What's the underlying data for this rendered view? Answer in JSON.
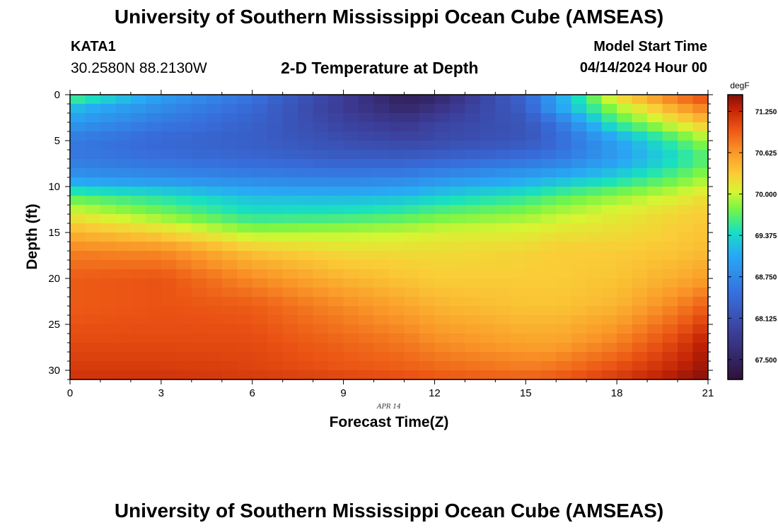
{
  "header": {
    "title": "University of Southern Mississippi Ocean Cube (AMSEAS)",
    "station": "KATA1",
    "coords": "30.2580N  88.2130W",
    "subtitle": "2-D Temperature at Depth",
    "start_label": "Model Start Time",
    "start_value": "04/14/2024 Hour 00"
  },
  "footer": {
    "title": "University of Southern Mississippi Ocean Cube (AMSEAS)"
  },
  "chart_data": {
    "type": "heatmap",
    "title": "2-D Temperature at Depth",
    "xlabel": "Forecast Time(Z)",
    "ylabel": "Depth (ft)",
    "x_date_label": "APR 14",
    "xlim": [
      0,
      21
    ],
    "ylim": [
      0,
      31
    ],
    "x_ticks": [
      0,
      3,
      6,
      9,
      12,
      15,
      18,
      21
    ],
    "y_ticks": [
      0,
      5,
      10,
      15,
      20,
      25,
      30
    ],
    "colorbar": {
      "unit": "degF",
      "range": [
        67.2,
        71.5
      ],
      "ticks": [
        "71.250",
        "70.625",
        "70.000",
        "69.375",
        "68.750",
        "68.125",
        "67.500"
      ]
    },
    "x": [
      0,
      3,
      6,
      9,
      11,
      12,
      15,
      16,
      18,
      20,
      21
    ],
    "depths": [
      0,
      1,
      3,
      5,
      7,
      9,
      11,
      13,
      15,
      17,
      20,
      23,
      27,
      30,
      31
    ],
    "values": [
      [
        69.85,
        69.0,
        68.55,
        67.9,
        67.4,
        67.5,
        68.4,
        68.9,
        70.3,
        70.9,
        71.1
      ],
      [
        69.3,
        68.85,
        68.45,
        67.85,
        67.5,
        67.65,
        68.35,
        69.1,
        70.0,
        70.65,
        70.9
      ],
      [
        68.95,
        68.6,
        68.35,
        67.95,
        67.8,
        67.95,
        68.2,
        68.55,
        69.6,
        70.15,
        70.4
      ],
      [
        68.6,
        68.4,
        68.3,
        68.1,
        68.0,
        68.05,
        68.2,
        68.4,
        69.0,
        69.6,
        69.9
      ],
      [
        68.6,
        68.5,
        68.4,
        68.3,
        68.3,
        68.35,
        68.5,
        68.6,
        68.95,
        69.4,
        69.65
      ],
      [
        68.9,
        68.8,
        68.7,
        68.65,
        68.7,
        68.8,
        69.0,
        69.1,
        69.35,
        69.7,
        69.9
      ],
      [
        69.65,
        69.45,
        69.2,
        69.15,
        69.2,
        69.3,
        69.5,
        69.65,
        69.85,
        70.05,
        70.2
      ],
      [
        70.1,
        69.8,
        69.45,
        69.5,
        69.6,
        69.7,
        69.85,
        69.95,
        70.1,
        70.25,
        70.3
      ],
      [
        70.45,
        70.25,
        69.9,
        69.95,
        70.0,
        70.05,
        70.1,
        70.15,
        70.2,
        70.3,
        70.35
      ],
      [
        70.75,
        70.7,
        70.35,
        70.2,
        70.2,
        70.2,
        70.25,
        70.3,
        70.3,
        70.35,
        70.4
      ],
      [
        70.95,
        71.0,
        70.7,
        70.45,
        70.35,
        70.3,
        70.3,
        70.3,
        70.35,
        70.5,
        70.6
      ],
      [
        70.95,
        71.0,
        70.95,
        70.7,
        70.55,
        70.45,
        70.35,
        70.35,
        70.45,
        70.75,
        70.95
      ],
      [
        71.05,
        71.05,
        71.05,
        70.9,
        70.8,
        70.7,
        70.55,
        70.55,
        70.75,
        71.1,
        71.35
      ],
      [
        71.15,
        71.15,
        71.1,
        71.0,
        70.95,
        70.9,
        70.8,
        70.85,
        71.05,
        71.3,
        71.45
      ],
      [
        71.2,
        71.2,
        71.15,
        71.1,
        71.05,
        71.0,
        70.95,
        71.0,
        71.15,
        71.4,
        71.5
      ]
    ]
  }
}
